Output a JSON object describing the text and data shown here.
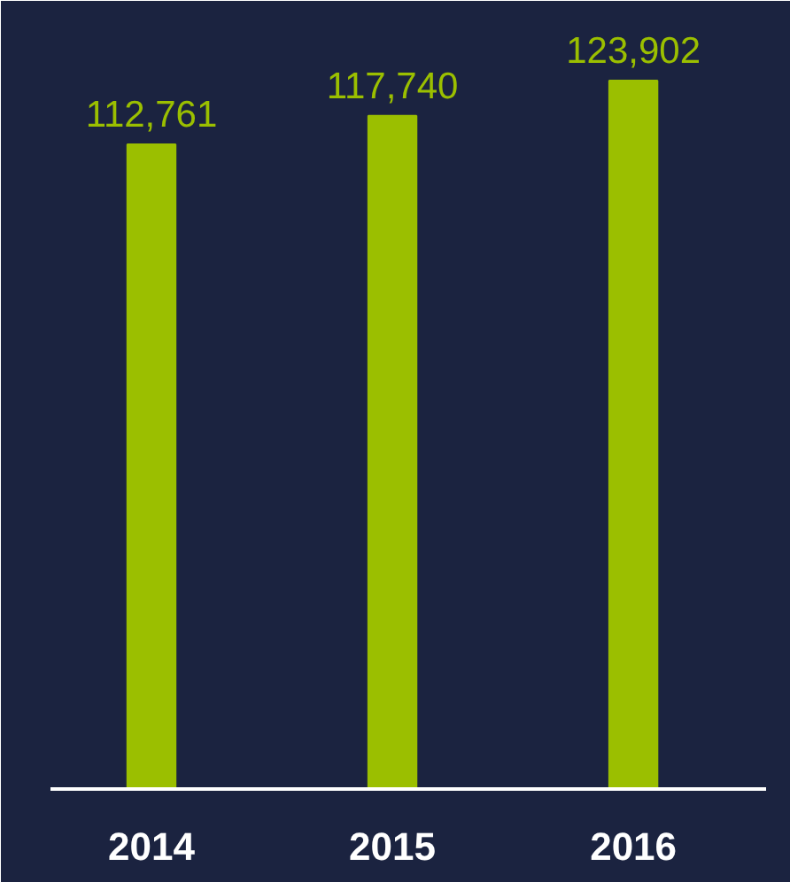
{
  "chart_data": {
    "type": "bar",
    "categories": [
      "2014",
      "2015",
      "2016"
    ],
    "values": [
      112761,
      117740,
      123902
    ],
    "value_labels": [
      "112,761",
      "117,740",
      "123,902"
    ],
    "color": "#9bbf00"
  }
}
